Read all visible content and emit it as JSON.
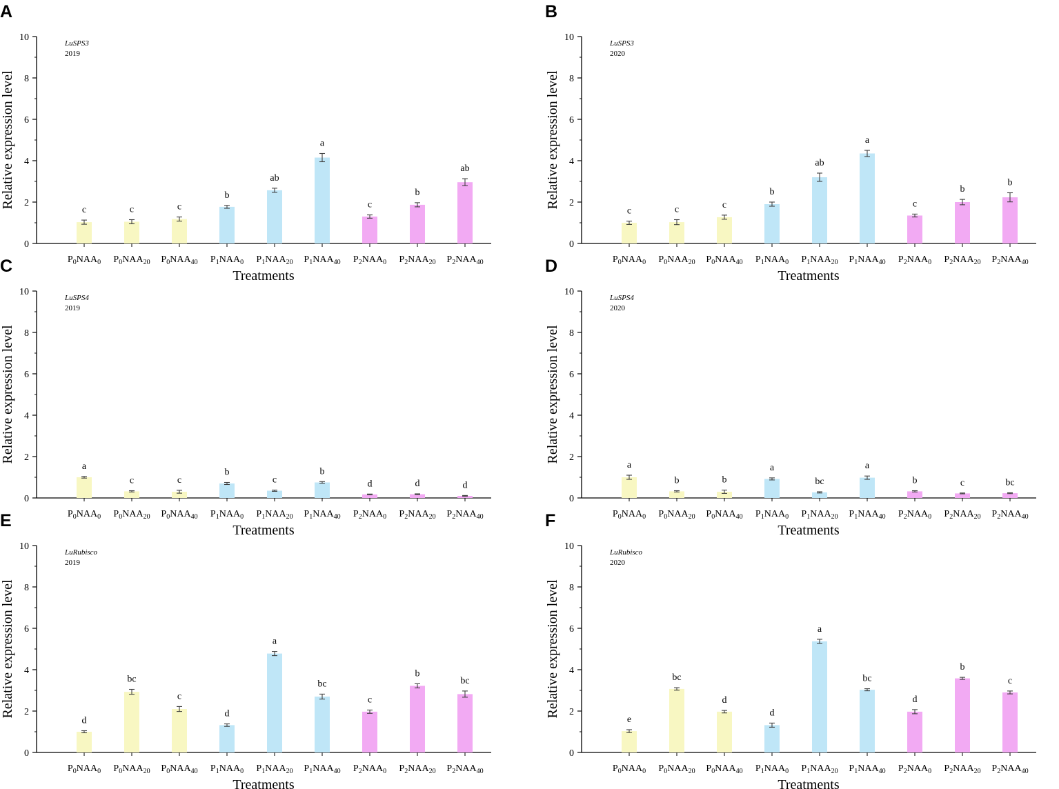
{
  "chart_data": [
    {
      "panel": "A",
      "type": "bar",
      "gene": "LuSPS3",
      "year": "2019",
      "xlabel": "Treatments",
      "ylabel": "Relative  expression  level",
      "ylim": [
        0,
        10
      ],
      "yticks": [
        "0",
        "2",
        "4",
        "6",
        "8",
        "10"
      ],
      "categories": [
        [
          "P",
          "0",
          "NAA",
          "0"
        ],
        [
          "P",
          "0",
          "NAA",
          "20"
        ],
        [
          "P",
          "0",
          "NAA",
          "40"
        ],
        [
          "P",
          "1",
          "NAA",
          "0"
        ],
        [
          "P",
          "1",
          "NAA",
          "20"
        ],
        [
          "P",
          "1",
          "NAA",
          "40"
        ],
        [
          "P",
          "2",
          "NAA",
          "0"
        ],
        [
          "P",
          "2",
          "NAA",
          "20"
        ],
        [
          "P",
          "2",
          "NAA",
          "40"
        ]
      ],
      "values": [
        1.03,
        1.05,
        1.18,
        1.77,
        2.57,
        4.15,
        1.3,
        1.87,
        2.96
      ],
      "errors": [
        0.1,
        0.1,
        0.1,
        0.07,
        0.1,
        0.2,
        0.08,
        0.1,
        0.17
      ],
      "letters": [
        "c",
        "c",
        "c",
        "b",
        "ab",
        "a",
        "c",
        "b",
        "ab"
      ]
    },
    {
      "panel": "B",
      "type": "bar",
      "gene": "LuSPS3",
      "year": "2020",
      "xlabel": "Treatments",
      "ylabel": "Relative  expression  level",
      "ylim": [
        0,
        10
      ],
      "yticks": [
        "0",
        "2",
        "4",
        "6",
        "8",
        "10"
      ],
      "categories": [
        [
          "P",
          "0",
          "NAA",
          "0"
        ],
        [
          "P",
          "0",
          "NAA",
          "20"
        ],
        [
          "P",
          "0",
          "NAA",
          "40"
        ],
        [
          "P",
          "1",
          "NAA",
          "0"
        ],
        [
          "P",
          "1",
          "NAA",
          "20"
        ],
        [
          "P",
          "1",
          "NAA",
          "40"
        ],
        [
          "P",
          "2",
          "NAA",
          "0"
        ],
        [
          "P",
          "2",
          "NAA",
          "20"
        ],
        [
          "P",
          "2",
          "NAA",
          "40"
        ]
      ],
      "values": [
        1.0,
        1.03,
        1.27,
        1.9,
        3.2,
        4.35,
        1.35,
        2.0,
        2.23
      ],
      "errors": [
        0.08,
        0.12,
        0.1,
        0.1,
        0.2,
        0.15,
        0.07,
        0.13,
        0.22
      ],
      "letters": [
        "c",
        "c",
        "c",
        "b",
        "ab",
        "a",
        "c",
        "b",
        "b"
      ]
    },
    {
      "panel": "C",
      "type": "bar",
      "gene": "LuSPS4",
      "year": "2019",
      "xlabel": "Treatments",
      "ylabel": "Relative  expression  level",
      "ylim": [
        0,
        10
      ],
      "yticks": [
        "0",
        "2",
        "4",
        "6",
        "8",
        "10"
      ],
      "categories": [
        [
          "P",
          "0",
          "NAA",
          "0"
        ],
        [
          "P",
          "0",
          "NAA",
          "20"
        ],
        [
          "P",
          "0",
          "NAA",
          "40"
        ],
        [
          "P",
          "1",
          "NAA",
          "0"
        ],
        [
          "P",
          "1",
          "NAA",
          "20"
        ],
        [
          "P",
          "1",
          "NAA",
          "40"
        ],
        [
          "P",
          "2",
          "NAA",
          "0"
        ],
        [
          "P",
          "2",
          "NAA",
          "20"
        ],
        [
          "P",
          "2",
          "NAA",
          "40"
        ]
      ],
      "values": [
        1.0,
        0.32,
        0.3,
        0.7,
        0.35,
        0.75,
        0.17,
        0.18,
        0.1
      ],
      "errors": [
        0.04,
        0.03,
        0.07,
        0.05,
        0.03,
        0.04,
        0.02,
        0.02,
        0.02
      ],
      "letters": [
        "a",
        "c",
        "c",
        "b",
        "c",
        "b",
        "d",
        "d",
        "d"
      ]
    },
    {
      "panel": "D",
      "type": "bar",
      "gene": "LuSPS4",
      "year": "2020",
      "xlabel": "Treatments",
      "ylabel": "Relative  expression  level",
      "ylim": [
        0,
        10
      ],
      "yticks": [
        "0",
        "2",
        "4",
        "6",
        "8",
        "10"
      ],
      "categories": [
        [
          "P",
          "0",
          "NAA",
          "0"
        ],
        [
          "P",
          "0",
          "NAA",
          "20"
        ],
        [
          "P",
          "0",
          "NAA",
          "40"
        ],
        [
          "P",
          "1",
          "NAA",
          "0"
        ],
        [
          "P",
          "1",
          "NAA",
          "20"
        ],
        [
          "P",
          "1",
          "NAA",
          "40"
        ],
        [
          "P",
          "2",
          "NAA",
          "0"
        ],
        [
          "P",
          "2",
          "NAA",
          "20"
        ],
        [
          "P",
          "2",
          "NAA",
          "40"
        ]
      ],
      "values": [
        1.0,
        0.32,
        0.3,
        0.92,
        0.27,
        0.98,
        0.32,
        0.22,
        0.23
      ],
      "errors": [
        0.1,
        0.03,
        0.08,
        0.05,
        0.03,
        0.08,
        0.03,
        0.02,
        0.02
      ],
      "letters": [
        "a",
        "b",
        "b",
        "a",
        "bc",
        "a",
        "b",
        "c",
        "bc"
      ]
    },
    {
      "panel": "E",
      "type": "bar",
      "gene": "LuRubisco",
      "year": "2019",
      "xlabel": "Treatments",
      "ylabel": "Relative  expression  level",
      "ylim": [
        0,
        10
      ],
      "yticks": [
        "0",
        "2",
        "4",
        "6",
        "8",
        "10"
      ],
      "categories": [
        [
          "P",
          "0",
          "NAA",
          "0"
        ],
        [
          "P",
          "0",
          "NAA",
          "20"
        ],
        [
          "P",
          "0",
          "NAA",
          "40"
        ],
        [
          "P",
          "1",
          "NAA",
          "0"
        ],
        [
          "P",
          "1",
          "NAA",
          "20"
        ],
        [
          "P",
          "1",
          "NAA",
          "40"
        ],
        [
          "P",
          "2",
          "NAA",
          "0"
        ],
        [
          "P",
          "2",
          "NAA",
          "20"
        ],
        [
          "P",
          "2",
          "NAA",
          "40"
        ]
      ],
      "values": [
        1.0,
        2.93,
        2.1,
        1.32,
        4.78,
        2.7,
        1.97,
        3.22,
        2.82
      ],
      "errors": [
        0.05,
        0.12,
        0.12,
        0.06,
        0.1,
        0.12,
        0.08,
        0.1,
        0.15
      ],
      "letters": [
        "d",
        "bc",
        "c",
        "d",
        "a",
        "bc",
        "c",
        "b",
        "bc"
      ]
    },
    {
      "panel": "F",
      "type": "bar",
      "gene": "LuRubisco",
      "year": "2020",
      "xlabel": "Treatments",
      "ylabel": "Relative  expression  level",
      "ylim": [
        0,
        10
      ],
      "yticks": [
        "0",
        "2",
        "4",
        "6",
        "8",
        "10"
      ],
      "categories": [
        [
          "P",
          "0",
          "NAA",
          "0"
        ],
        [
          "P",
          "0",
          "NAA",
          "20"
        ],
        [
          "P",
          "0",
          "NAA",
          "40"
        ],
        [
          "P",
          "1",
          "NAA",
          "0"
        ],
        [
          "P",
          "1",
          "NAA",
          "20"
        ],
        [
          "P",
          "1",
          "NAA",
          "40"
        ],
        [
          "P",
          "2",
          "NAA",
          "0"
        ],
        [
          "P",
          "2",
          "NAA",
          "20"
        ],
        [
          "P",
          "2",
          "NAA",
          "40"
        ]
      ],
      "values": [
        1.03,
        3.07,
        1.97,
        1.32,
        5.37,
        3.03,
        1.97,
        3.58,
        2.9
      ],
      "errors": [
        0.07,
        0.06,
        0.06,
        0.1,
        0.1,
        0.05,
        0.1,
        0.05,
        0.07
      ],
      "letters": [
        "e",
        "bc",
        "d",
        "d",
        "a",
        "bc",
        "d",
        "b",
        "c"
      ]
    }
  ],
  "colors": {
    "p0": "#f8f7c2",
    "p1": "#bfe6f7",
    "p2": "#f2aaf3",
    "error_bar": "#404040",
    "axis": "#000000"
  }
}
